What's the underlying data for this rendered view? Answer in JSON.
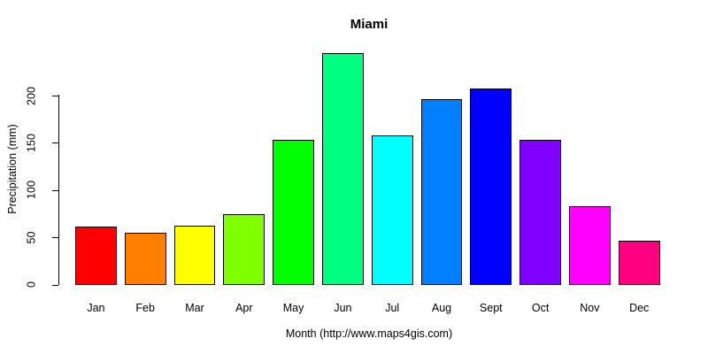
{
  "figure": {
    "background_color": "#FFFFFF",
    "text_color": "#000000"
  },
  "chart_data": {
    "type": "bar",
    "title": "Miami",
    "xlabel": "Month (http://www.maps4gis.com)",
    "ylabel": "Precipitation (mm)",
    "categories": [
      "Jan",
      "Feb",
      "Mar",
      "Apr",
      "May",
      "Jun",
      "Jul",
      "Aug",
      "Sept",
      "Oct",
      "Nov",
      "Dec"
    ],
    "values": [
      62,
      55,
      63,
      75,
      154,
      245,
      158,
      197,
      208,
      154,
      83,
      47
    ],
    "bar_colors": [
      "#FF0000",
      "#FF8000",
      "#FFFF00",
      "#80FF00",
      "#00FF00",
      "#00FF80",
      "#00FFFF",
      "#0080FF",
      "#0000FF",
      "#8000FF",
      "#FF00FF",
      "#FF0080"
    ],
    "bar_border_color": "#000000",
    "yticks": [
      0,
      50,
      100,
      150,
      200
    ],
    "ylim": [
      0,
      245
    ],
    "grid": false,
    "legend": null,
    "y_tick_labels_rotated": true
  }
}
